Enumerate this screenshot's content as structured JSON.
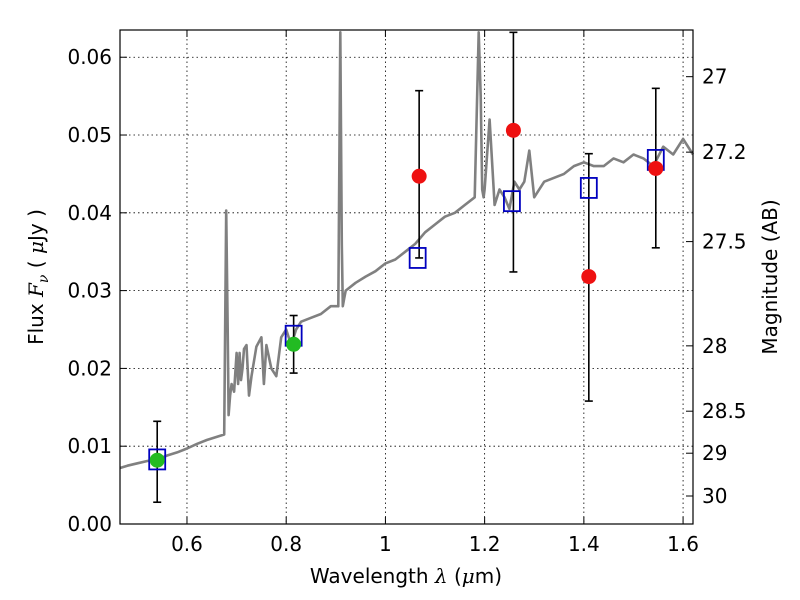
{
  "chart_data": {
    "type": "scatter",
    "title": "",
    "xlabel_parts": {
      "prefix": "Wavelength  ",
      "symbol": "λ",
      "paren_open": " (",
      "mu": "μ",
      "unit": "m)"
    },
    "ylabel_parts": {
      "prefix": "Flux  ",
      "symbol": "F",
      "subscript": "ν",
      "paren_open": "  ( ",
      "mu": "μ",
      "unit": "Jy )"
    },
    "y2label": "Magnitude (AB)",
    "xlim": [
      0.465,
      1.62
    ],
    "ylim": [
      0.0,
      0.0635
    ],
    "x_ticks": [
      {
        "value": 0.6,
        "label": "0.6"
      },
      {
        "value": 0.8,
        "label": "0.8"
      },
      {
        "value": 1.0,
        "label": "1"
      },
      {
        "value": 1.2,
        "label": "1.2"
      },
      {
        "value": 1.4,
        "label": "1.4"
      },
      {
        "value": 1.6,
        "label": "1.6"
      }
    ],
    "y_ticks": [
      {
        "value": 0.0,
        "label": "0.00"
      },
      {
        "value": 0.01,
        "label": "0.01"
      },
      {
        "value": 0.02,
        "label": "0.02"
      },
      {
        "value": 0.03,
        "label": "0.03"
      },
      {
        "value": 0.04,
        "label": "0.04"
      },
      {
        "value": 0.05,
        "label": "0.05"
      },
      {
        "value": 0.06,
        "label": "0.06"
      }
    ],
    "y2_ticks": [
      {
        "label": "27",
        "flux": 0.0575
      },
      {
        "label": "27.2",
        "flux": 0.0478
      },
      {
        "label": "27.5",
        "flux": 0.0363
      },
      {
        "label": "28",
        "flux": 0.0229
      },
      {
        "label": "28.5",
        "flux": 0.0145
      },
      {
        "label": "29",
        "flux": 0.0091
      },
      {
        "label": "30",
        "flux": 0.0036
      }
    ],
    "grid": true,
    "colors": {
      "model": "#808080",
      "synthetic": "#0000bf",
      "detected": "#22bb22",
      "measured": "#ee1111",
      "errorbar": "#000000"
    },
    "series": [
      {
        "name": "model spectrum",
        "kind": "line",
        "x": [
          0.465,
          0.48,
          0.5,
          0.52,
          0.54,
          0.56,
          0.58,
          0.6,
          0.62,
          0.64,
          0.66,
          0.675,
          0.679,
          0.682,
          0.684,
          0.687,
          0.69,
          0.695,
          0.7,
          0.703,
          0.706,
          0.709,
          0.712,
          0.715,
          0.72,
          0.725,
          0.73,
          0.74,
          0.75,
          0.755,
          0.76,
          0.77,
          0.78,
          0.79,
          0.8,
          0.81,
          0.82,
          0.83,
          0.85,
          0.87,
          0.89,
          0.905,
          0.909,
          0.912,
          0.914,
          0.917,
          0.92,
          0.94,
          0.96,
          0.98,
          1.0,
          1.02,
          1.04,
          1.06,
          1.08,
          1.1,
          1.12,
          1.14,
          1.16,
          1.18,
          1.188,
          1.192,
          1.195,
          1.198,
          1.2,
          1.21,
          1.22,
          1.23,
          1.24,
          1.25,
          1.26,
          1.27,
          1.28,
          1.29,
          1.3,
          1.32,
          1.34,
          1.36,
          1.38,
          1.4,
          1.42,
          1.44,
          1.46,
          1.48,
          1.5,
          1.52,
          1.54,
          1.56,
          1.58,
          1.6,
          1.62
        ],
        "y": [
          0.0072,
          0.0075,
          0.0078,
          0.0081,
          0.0083,
          0.0088,
          0.0092,
          0.0097,
          0.0103,
          0.0108,
          0.0112,
          0.0115,
          0.0403,
          0.025,
          0.014,
          0.0165,
          0.018,
          0.017,
          0.022,
          0.018,
          0.022,
          0.0185,
          0.02,
          0.0225,
          0.023,
          0.0165,
          0.019,
          0.0228,
          0.024,
          0.018,
          0.023,
          0.02,
          0.019,
          0.024,
          0.025,
          0.023,
          0.025,
          0.026,
          0.0265,
          0.027,
          0.028,
          0.028,
          0.0632,
          0.036,
          0.028,
          0.029,
          0.03,
          0.031,
          0.0318,
          0.0325,
          0.0335,
          0.034,
          0.035,
          0.036,
          0.0375,
          0.0385,
          0.0395,
          0.04,
          0.041,
          0.042,
          0.0632,
          0.055,
          0.043,
          0.042,
          0.043,
          0.052,
          0.041,
          0.043,
          0.042,
          0.0405,
          0.044,
          0.043,
          0.044,
          0.048,
          0.042,
          0.044,
          0.0445,
          0.045,
          0.046,
          0.0465,
          0.046,
          0.046,
          0.047,
          0.0465,
          0.0475,
          0.047,
          0.046,
          0.0485,
          0.0475,
          0.0495,
          0.0475
        ]
      },
      {
        "name": "synthetic photometry",
        "kind": "square",
        "x": [
          0.54,
          0.815,
          1.065,
          1.255,
          1.41,
          1.545
        ],
        "y": [
          0.0083,
          0.0242,
          0.0342,
          0.0415,
          0.0432,
          0.0468
        ]
      },
      {
        "name": "detected flux",
        "kind": "point",
        "x": [
          0.54,
          0.815
        ],
        "y": [
          0.0082,
          0.0231
        ]
      },
      {
        "name": "measured flux",
        "kind": "point",
        "x": [
          1.068,
          1.258,
          1.41,
          1.545
        ],
        "y": [
          0.0447,
          0.0506,
          0.0318,
          0.0457
        ]
      },
      {
        "name": "error bars",
        "kind": "errorbar",
        "x": [
          0.54,
          0.815,
          1.068,
          1.258,
          1.41,
          1.545
        ],
        "low": [
          0.0028,
          0.0194,
          0.0342,
          0.0324,
          0.0158,
          0.0355
        ],
        "high": [
          0.0132,
          0.0268,
          0.0557,
          0.0632,
          0.0476,
          0.056
        ]
      }
    ]
  }
}
